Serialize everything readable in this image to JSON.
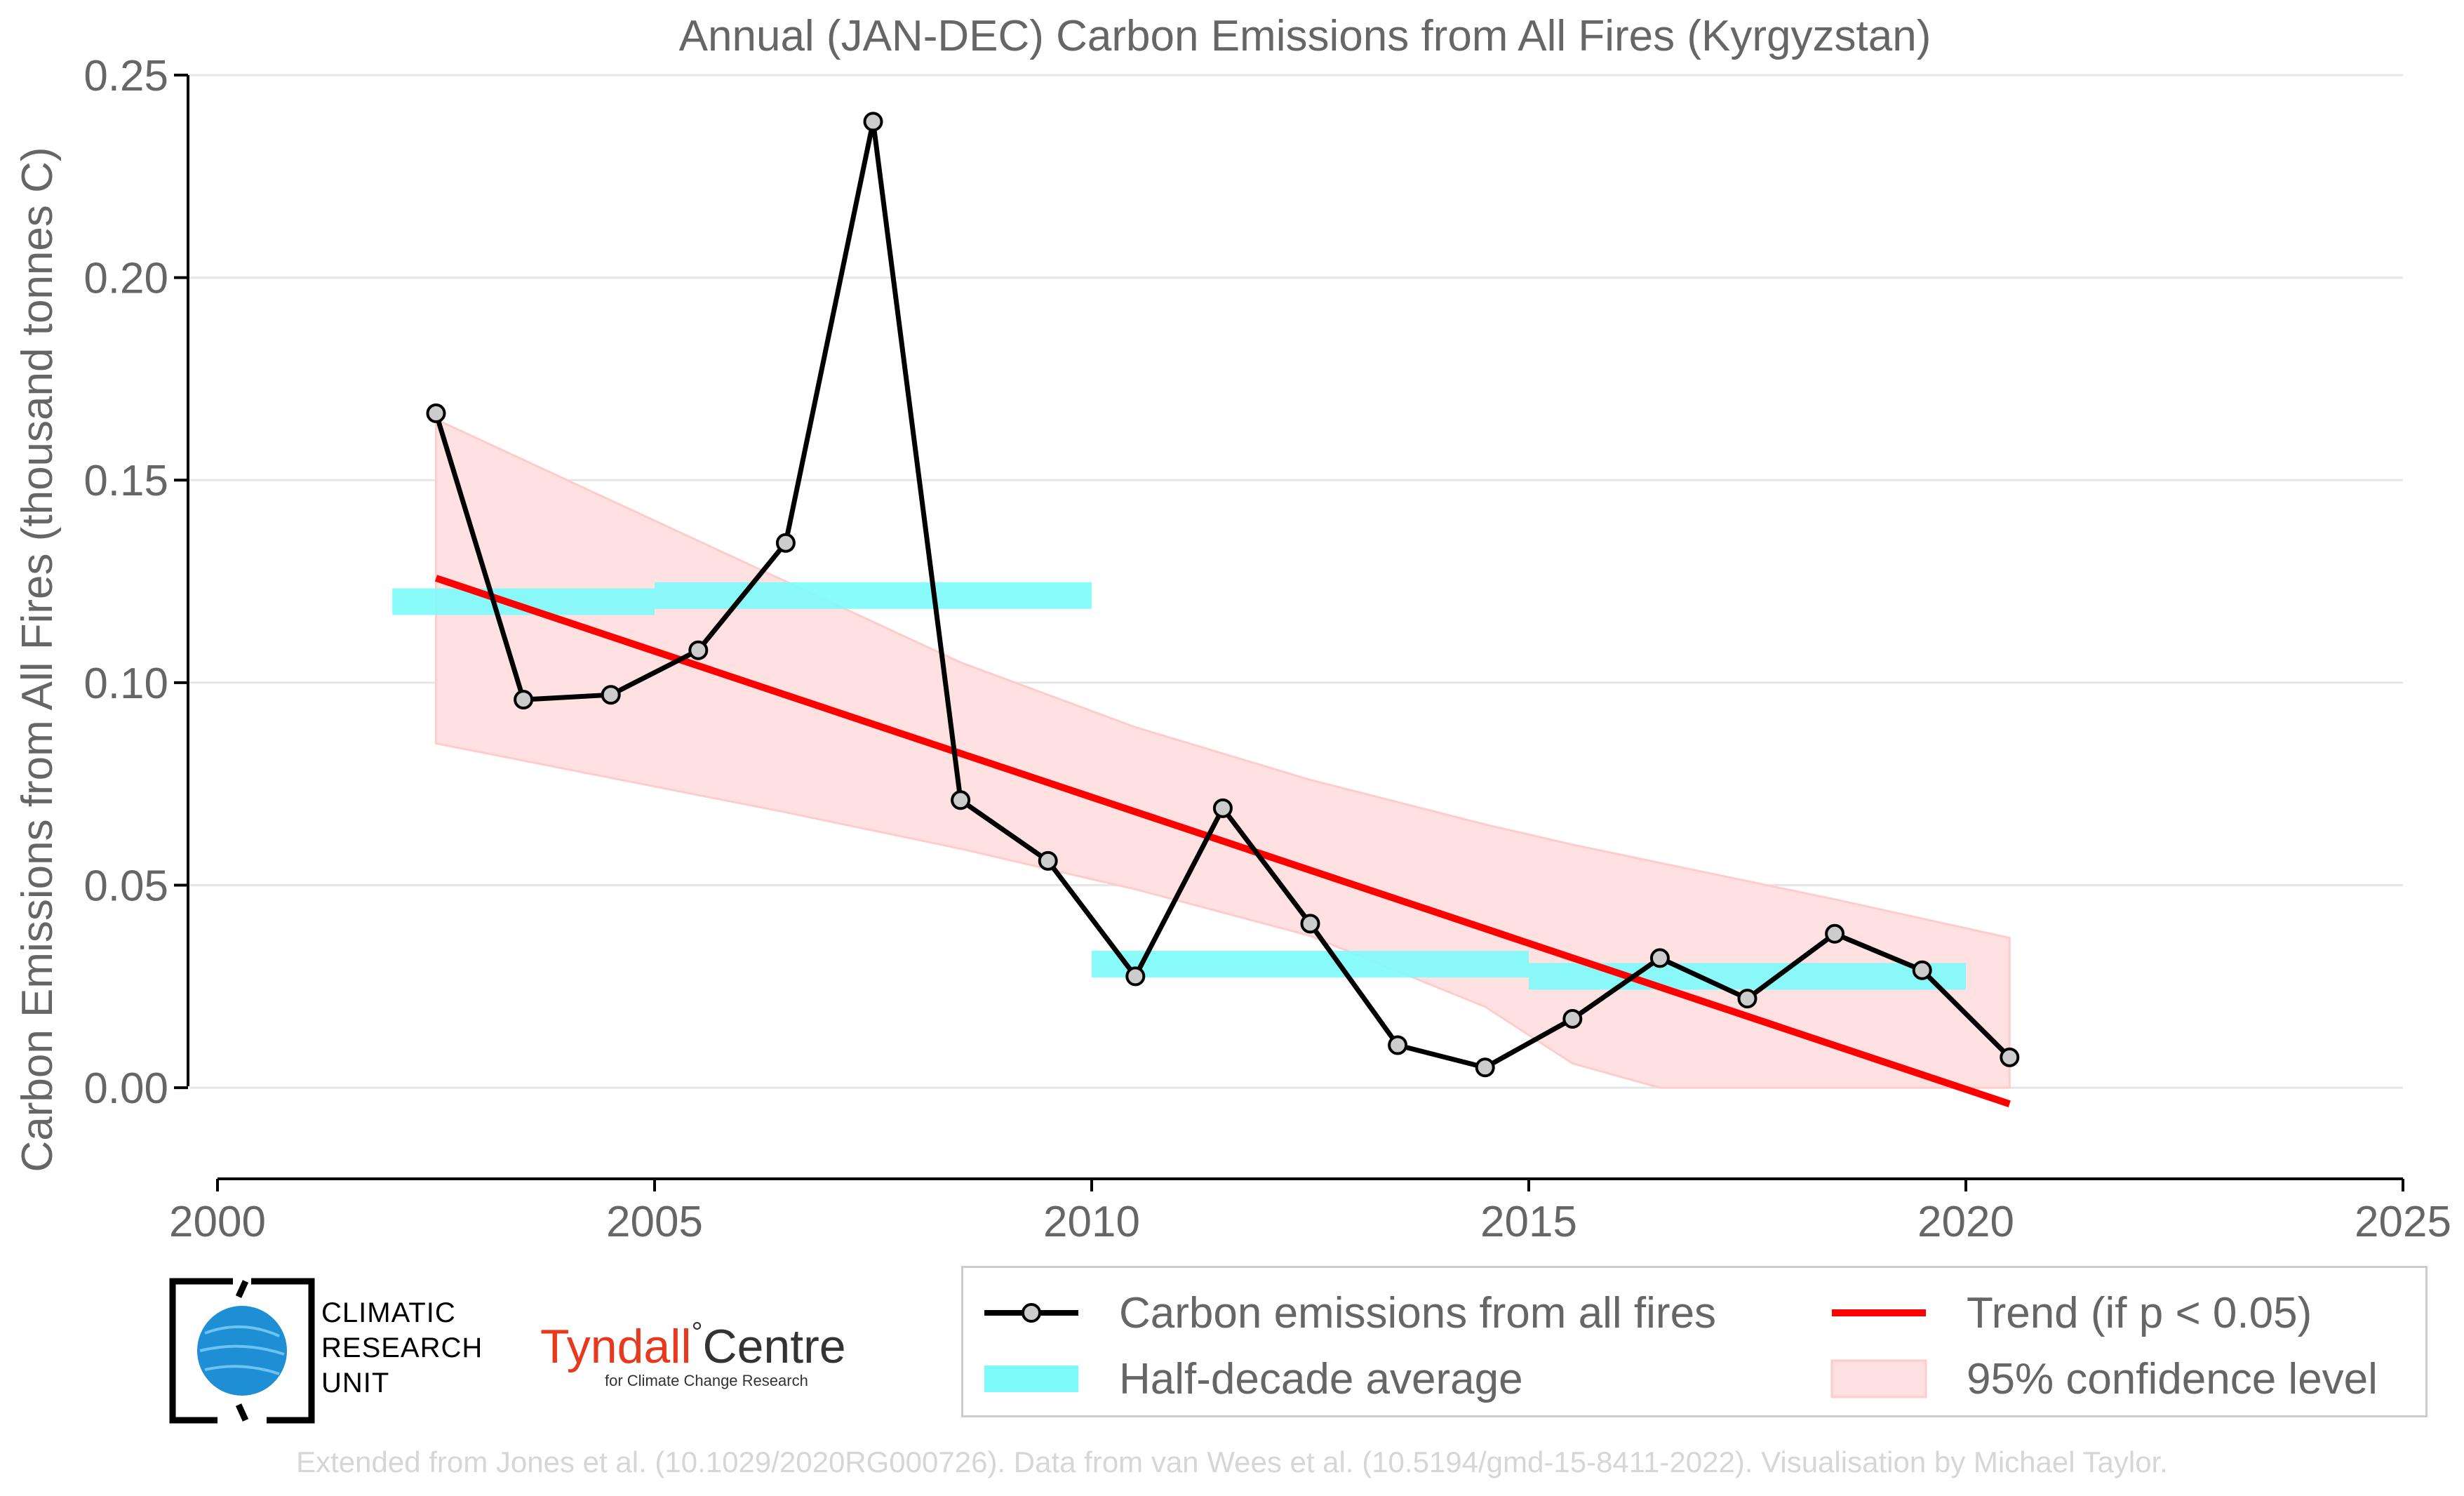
{
  "chart_data": {
    "type": "line",
    "title": "Annual (JAN-DEC) Carbon Emissions from All Fires (Kyrgyzstan)",
    "ylabel": "Carbon Emissions from All Fires (thousand tonnes C)",
    "xlabel": "",
    "xlim": [
      2000,
      2025
    ],
    "ylim": [
      -0.0225,
      0.25
    ],
    "xticks": [
      2000,
      2005,
      2010,
      2015,
      2020,
      2025
    ],
    "xtick_labels": [
      "2000",
      "2005",
      "2010",
      "2015",
      "2020",
      "2025"
    ],
    "yticks": [
      0.0,
      0.05,
      0.1,
      0.15,
      0.2,
      0.25
    ],
    "ytick_labels": [
      "0.00",
      "0.05",
      "0.10",
      "0.15",
      "0.20",
      "0.25"
    ],
    "grid": "horizontal",
    "legend_position": "bottom-right, outside plot",
    "series": [
      {
        "name": "Carbon emissions from all fires",
        "kind": "line-markers",
        "color": "#000000",
        "marker_fill": "#cccccc",
        "x": [
          2002.5,
          2003.5,
          2004.5,
          2005.5,
          2006.5,
          2007.5,
          2008.5,
          2009.5,
          2010.5,
          2011.5,
          2012.5,
          2013.5,
          2014.5,
          2015.5,
          2016.5,
          2017.5,
          2018.5,
          2019.5,
          2020.5
        ],
        "y": [
          0.1665,
          0.0958,
          0.097,
          0.108,
          0.1345,
          0.2385,
          0.071,
          0.056,
          0.0275,
          0.069,
          0.0405,
          0.0105,
          0.005,
          0.017,
          0.032,
          0.022,
          0.038,
          0.029,
          0.0075
        ]
      },
      {
        "name": "Half-decade average",
        "kind": "segments",
        "color": "#7dfbfb",
        "segments": [
          {
            "x0": 2002,
            "x1": 2005,
            "y": 0.12
          },
          {
            "x0": 2005,
            "x1": 2010,
            "y": 0.1215
          },
          {
            "x0": 2010,
            "x1": 2015,
            "y": 0.0305
          },
          {
            "x0": 2015,
            "x1": 2020,
            "y": 0.0275
          }
        ]
      },
      {
        "name": "Trend (if p < 0.05)",
        "kind": "line",
        "color": "#ff0000",
        "x": [
          2002.5,
          2020.5
        ],
        "y": [
          0.1258,
          -0.004
        ]
      },
      {
        "name": "95% confidence level",
        "kind": "band",
        "color": "#ffcccc",
        "x": [
          2002.5,
          2004.5,
          2006.5,
          2008.5,
          2010.5,
          2012.5,
          2014.5,
          2015.5,
          2016.5,
          2018.5,
          2020.5
        ],
        "lower": [
          0.085,
          0.0765,
          0.068,
          0.059,
          0.049,
          0.0375,
          0.02,
          0.006,
          0.0,
          0.0,
          0.0
        ],
        "upper": [
          0.165,
          0.145,
          0.125,
          0.105,
          0.089,
          0.076,
          0.065,
          0.06,
          0.0555,
          0.0465,
          0.037
        ]
      }
    ]
  },
  "legend": {
    "items": [
      {
        "label": "Carbon emissions from all fires"
      },
      {
        "label": "Trend (if p < 0.05)"
      },
      {
        "label": "Half-decade average"
      },
      {
        "label": "95% confidence level"
      }
    ]
  },
  "logos": {
    "cru_line1": "CLIMATIC",
    "cru_line2": "RESEARCH",
    "cru_line3": "UNIT",
    "tyndall_name": "Tyndall",
    "tyndall_degree": "°",
    "tyndall_centre": "Centre",
    "tyndall_sub": "for Climate Change Research"
  },
  "footer": "Extended from Jones et al. (10.1029/2020RG000726). Data from van Wees et al. (10.5194/gmd-15-8411-2022). Visualisation by Michael Taylor."
}
